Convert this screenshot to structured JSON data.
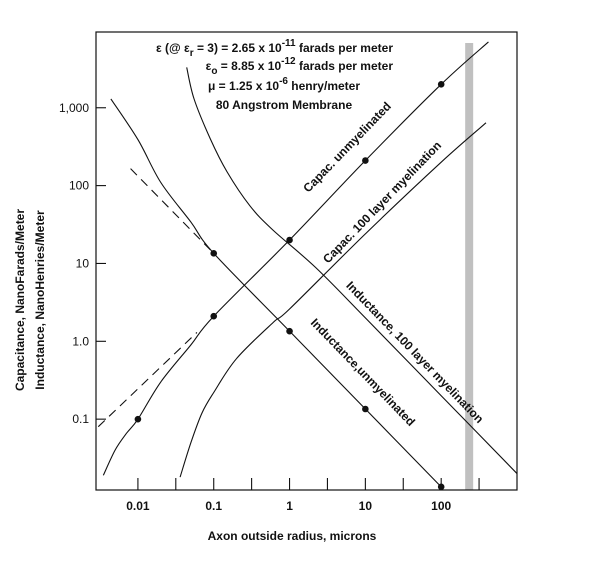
{
  "chart_data": {
    "type": "line",
    "xscale": "log",
    "yscale": "log",
    "xlim": [
      0.0028,
      1000
    ],
    "ylim": [
      0.0123,
      9400
    ],
    "xlabel": "Axon outside radius, microns",
    "ylabel_lines": [
      "Capacitance, NanoFarads/Meter",
      "Inductance, NanoHenries/Meter"
    ],
    "x_ticks": [
      0.01,
      0.1,
      1,
      10,
      100
    ],
    "x_tick_labels": [
      "0.01",
      "0.1",
      "1",
      "10",
      "100"
    ],
    "x_minor_ticks": [
      0.0316,
      0.316,
      3.16,
      31.6,
      316
    ],
    "y_ticks": [
      0.1,
      1,
      10,
      100,
      1000
    ],
    "y_tick_labels": [
      "0.1",
      "1.0",
      "10",
      "100",
      "1,000"
    ],
    "grid": false,
    "reference_band": {
      "x": 234,
      "color": "#c0c0c0"
    },
    "annotations": {
      "line1": {
        "pre": "ε (@ ε",
        "sub": "r",
        "mid": " = 3) = 2.65 x 10",
        "sup": "-11",
        "post": " farads per meter"
      },
      "line2": {
        "pre": "ε",
        "sub": "o",
        "mid": " = 8.85 x 10",
        "sup": "-12",
        "post": " farads per meter"
      },
      "line3": {
        "pre": "μ = 1.25 x 10",
        "sup": "-6",
        "post": " henry/meter"
      },
      "line4": "80 Angstrom Membrane"
    },
    "series": [
      {
        "name": "Capac. unmyelinated",
        "x": [
          0.0035,
          0.005,
          0.007,
          0.01,
          0.02,
          0.05,
          0.1,
          1,
          10,
          100,
          420
        ],
        "y": [
          0.019,
          0.04,
          0.065,
          0.1,
          0.3,
          0.9,
          2.1,
          20,
          210,
          2000,
          7000
        ],
        "markers_x": [
          0.01,
          0.1,
          1,
          10,
          100
        ],
        "markers_y": [
          0.1,
          2.1,
          20,
          210,
          2000
        ],
        "asymptote": {
          "x": [
            0.003,
            0.06
          ],
          "y": [
            0.08,
            1.3
          ]
        }
      },
      {
        "name": "Capac. 100 layer myelination",
        "x": [
          0.036,
          0.05,
          0.07,
          0.1,
          0.2,
          0.61,
          1,
          10,
          100,
          390
        ],
        "y": [
          0.018,
          0.05,
          0.12,
          0.22,
          0.6,
          1.75,
          2.6,
          24,
          200,
          640
        ]
      },
      {
        "name": "Inductance,unmyelinated",
        "x": [
          0.0044,
          0.01,
          0.02,
          0.05,
          0.1,
          1,
          10,
          100
        ],
        "y": [
          1300,
          390,
          110,
          34,
          13.5,
          1.35,
          0.135,
          0.0135
        ],
        "markers_x": [
          0.1,
          1,
          10,
          100
        ],
        "markers_y": [
          13.5,
          1.35,
          0.135,
          0.0135
        ],
        "asymptote": {
          "x": [
            0.008,
            0.09
          ],
          "y": [
            165,
            15
          ]
        }
      },
      {
        "name": "Inductance, 100 layer myelination",
        "x": [
          0.044,
          0.055,
          0.09,
          0.15,
          0.3,
          0.6,
          2.2,
          10,
          100,
          1000
        ],
        "y": [
          3300,
          1300,
          400,
          150,
          55,
          27,
          8.9,
          2,
          0.2,
          0.02
        ]
      }
    ]
  }
}
